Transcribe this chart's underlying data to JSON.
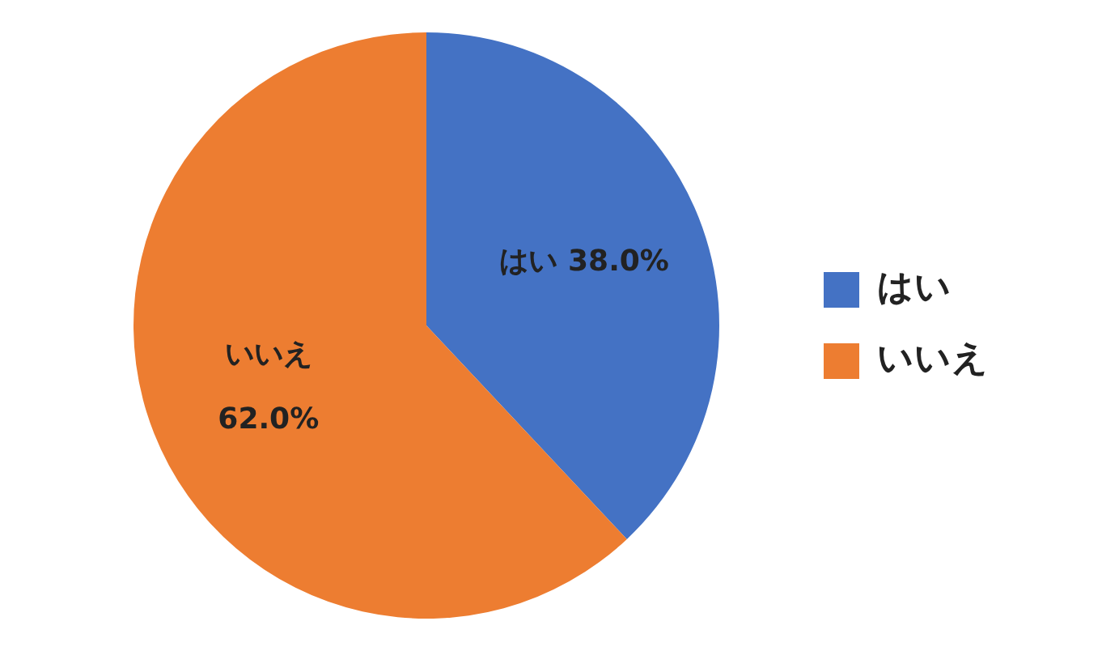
{
  "chart_data": {
    "type": "pie",
    "categories": [
      "はい",
      "いいえ"
    ],
    "values": [
      38,
      62
    ],
    "colors": [
      "#4472c4",
      "#ed7d31"
    ],
    "value_labels": [
      "38.0%",
      "62.0%"
    ],
    "legend": "right"
  }
}
